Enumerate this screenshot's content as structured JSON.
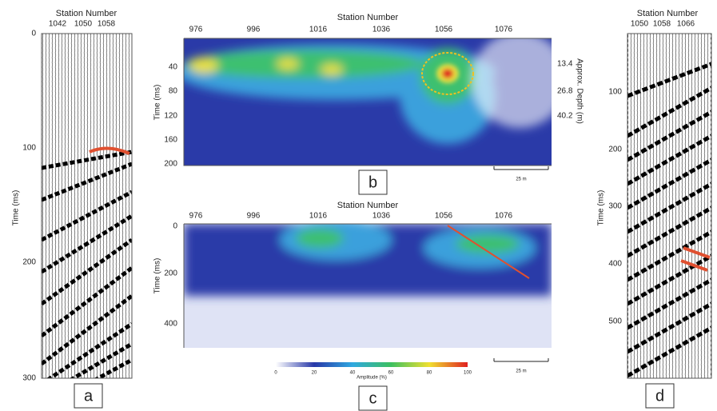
{
  "panels": [
    {
      "label": "a",
      "title": "Station Number",
      "x_ticks": [
        "1042",
        "1050",
        "1058"
      ],
      "y_label": "Time (ms)",
      "y_ticks": [
        "0",
        "100",
        "200",
        "300"
      ]
    },
    {
      "label": "b",
      "title": "Station Number",
      "x_ticks": [
        "976",
        "996",
        "1016",
        "1036",
        "1056",
        "1076"
      ],
      "y_label": "Time (ms)",
      "y_ticks": [
        "40",
        "80",
        "120",
        "160",
        "200"
      ],
      "depth_label": "Approx. Depth (m)",
      "depth_ticks": [
        "13.4",
        "26.8",
        "40.2"
      ],
      "scale_bar": "25 m"
    },
    {
      "label": "c",
      "title": "Station Number",
      "x_ticks": [
        "976",
        "996",
        "1016",
        "1036",
        "1056",
        "1076"
      ],
      "y_label": "Time (ms)",
      "y_ticks": [
        "0",
        "200",
        "400"
      ],
      "scale_bar": "25 m",
      "colorbar": {
        "label": "Amplitude (%)",
        "ticks": [
          "0",
          "20",
          "40",
          "60",
          "80",
          "100"
        ]
      }
    },
    {
      "label": "d",
      "title": "Station Number",
      "x_ticks": [
        "1050",
        "1058",
        "1066"
      ],
      "y_label": "Time (ms)",
      "y_ticks": [
        "100",
        "200",
        "300",
        "400",
        "500"
      ]
    }
  ]
}
